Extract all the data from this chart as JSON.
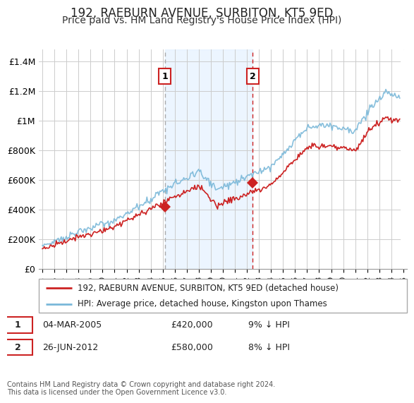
{
  "title": "192, RAEBURN AVENUE, SURBITON, KT5 9ED",
  "subtitle": "Price paid vs. HM Land Registry's House Price Index (HPI)",
  "title_fontsize": 12,
  "subtitle_fontsize": 10,
  "ylabel_ticks": [
    "£0",
    "£200K",
    "£400K",
    "£600K",
    "£800K",
    "£1M",
    "£1.2M",
    "£1.4M"
  ],
  "ytick_values": [
    0,
    200000,
    400000,
    600000,
    800000,
    1000000,
    1200000,
    1400000
  ],
  "ylim": [
    0,
    1480000
  ],
  "xlim_start": 1994.7,
  "xlim_end": 2025.3,
  "xtick_years": [
    1995,
    1996,
    1997,
    1998,
    1999,
    2000,
    2001,
    2002,
    2003,
    2004,
    2005,
    2006,
    2007,
    2008,
    2009,
    2010,
    2011,
    2012,
    2013,
    2014,
    2015,
    2016,
    2017,
    2018,
    2019,
    2020,
    2021,
    2022,
    2023,
    2024,
    2025
  ],
  "hpi_color": "#7ab8d9",
  "price_color": "#cc2222",
  "sale1_x": 2005.17,
  "sale1_y": 420000,
  "sale2_x": 2012.49,
  "sale2_y": 580000,
  "shaded_region_color": "#ddeeff",
  "shaded_region_alpha": 0.55,
  "vline1_color": "#aaaaaa",
  "vline1_style": "--",
  "vline2_color": "#cc2222",
  "vline2_style": "--",
  "legend_label_price": "192, RAEBURN AVENUE, SURBITON, KT5 9ED (detached house)",
  "legend_label_hpi": "HPI: Average price, detached house, Kingston upon Thames",
  "note1_num": "1",
  "note1_date": "04-MAR-2005",
  "note1_price": "£420,000",
  "note1_hpi": "9% ↓ HPI",
  "note2_num": "2",
  "note2_date": "26-JUN-2012",
  "note2_price": "£580,000",
  "note2_hpi": "8% ↓ HPI",
  "footer": "Contains HM Land Registry data © Crown copyright and database right 2024.\nThis data is licensed under the Open Government Licence v3.0.",
  "background_color": "#ffffff",
  "grid_color": "#cccccc"
}
